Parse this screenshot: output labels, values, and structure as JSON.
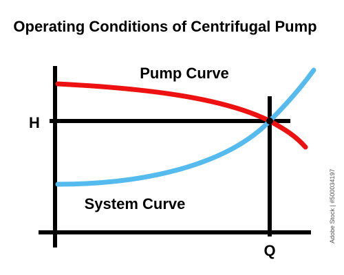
{
  "title": "Operating Conditions of Centrifugal Pump",
  "labels": {
    "pump_curve": "Pump Curve",
    "system_curve": "System Curve",
    "head_axis": "H",
    "flow_axis": "Q"
  },
  "side_caption": "Adobe Stock | #500034197",
  "colors": {
    "axis": "#000000",
    "pump_curve": "#ee1111",
    "system_curve": "#55bbee",
    "text": "#000000"
  }
}
